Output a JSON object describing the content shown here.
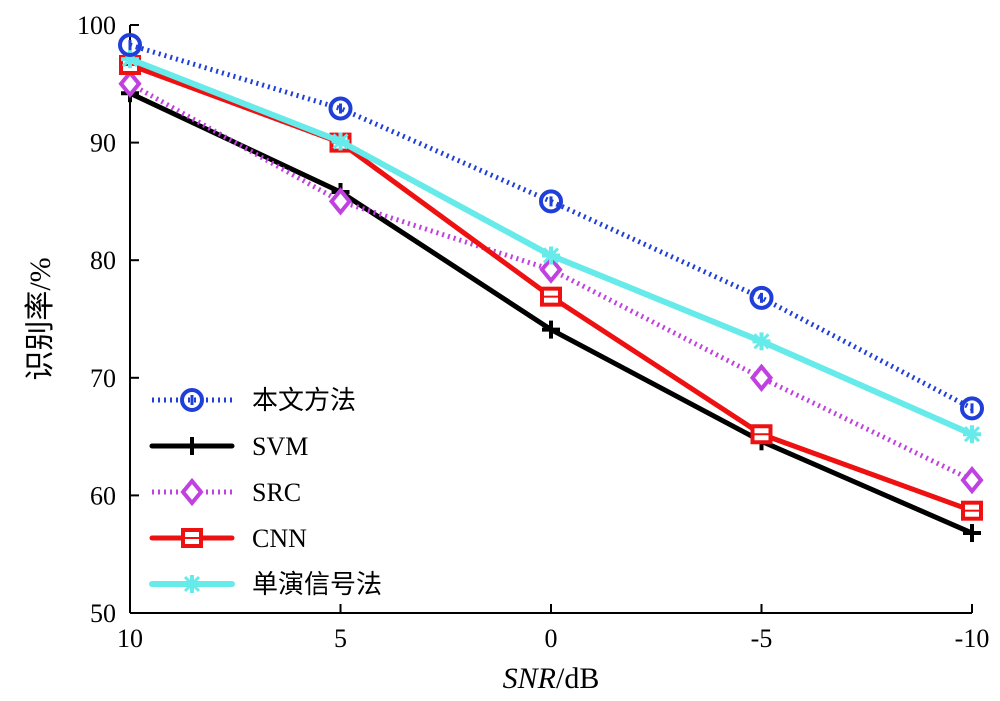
{
  "chart_data": {
    "type": "line",
    "x": [
      10,
      5,
      0,
      -5,
      -10
    ],
    "x_tick_labels": [
      "10",
      "5",
      "0",
      "-5",
      "-10"
    ],
    "y_ticks": [
      50,
      60,
      70,
      80,
      90,
      100
    ],
    "ylim": [
      50,
      100
    ],
    "xlabel_italic": "SNR",
    "xlabel_unit": "/dB",
    "ylabel": "识别率/%",
    "grid": false,
    "legend_position": "bottom-left",
    "series": [
      {
        "name": "本文方法",
        "values": [
          98.3,
          92.9,
          85.0,
          76.8,
          67.4
        ],
        "color": "#1f3fd8",
        "dash": "dotted",
        "marker": "circle"
      },
      {
        "name": "SVM",
        "values": [
          94.2,
          85.8,
          74.1,
          64.6,
          56.8
        ],
        "color": "#000000",
        "dash": "solid",
        "marker": "plus"
      },
      {
        "name": "SRC",
        "values": [
          95.0,
          85.0,
          79.2,
          70.0,
          61.3
        ],
        "color": "#c040e0",
        "dash": "dotted",
        "marker": "diamond"
      },
      {
        "name": "CNN",
        "values": [
          96.6,
          90.0,
          76.9,
          65.2,
          58.7
        ],
        "color": "#ee1111",
        "dash": "solid",
        "marker": "square"
      },
      {
        "name": "单演信号法",
        "values": [
          97.1,
          90.1,
          80.4,
          73.1,
          65.2
        ],
        "color": "#66eaea",
        "dash": "solid",
        "marker": "star"
      }
    ]
  }
}
